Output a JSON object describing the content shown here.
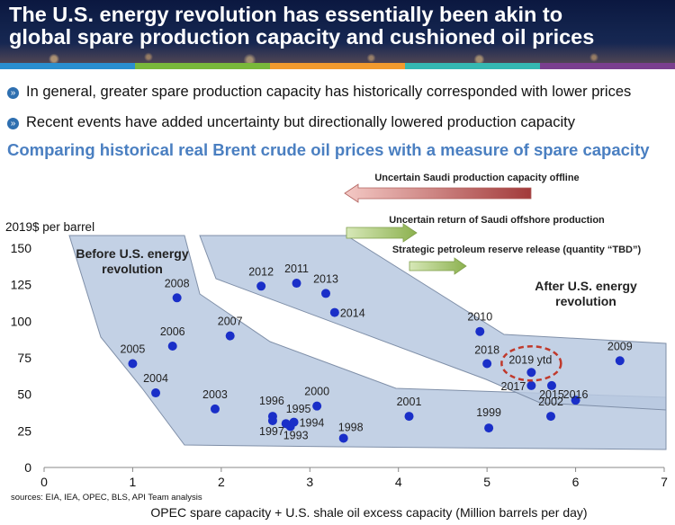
{
  "header": {
    "title_line1": "The U.S. energy revolution has essentially been akin to",
    "title_line2": "global spare production capacity and cushioned oil prices",
    "stripe_colors": [
      "#2a8fcf",
      "#79b83a",
      "#f29a2e",
      "#35b8b2",
      "#7a3f8e"
    ]
  },
  "bullets": [
    "In general, greater spare production capacity has historically corresponded with lower prices",
    "Recent events have added uncertainty but directionally lowered production capacity"
  ],
  "subtitle": "Comparing historical real Brent crude oil prices with a measure of spare capacity",
  "chart_data": {
    "type": "scatter",
    "ylabel": "2019$ per barrel",
    "xlabel": "OPEC spare capacity + U.S. shale oil excess capacity (Million barrels per day)",
    "xlim": [
      0,
      7
    ],
    "ylim": [
      0,
      150
    ],
    "xticks": [
      0,
      1,
      2,
      3,
      4,
      5,
      6,
      7
    ],
    "yticks": [
      0,
      25,
      50,
      75,
      100,
      125,
      150
    ],
    "grid": false,
    "source": "sources:  EIA, IEA, OPEC, BLS, API Team analysis",
    "points": [
      {
        "label": "1993",
        "x": 2.78,
        "y": 28
      },
      {
        "label": "1994",
        "x": 2.82,
        "y": 31
      },
      {
        "label": "1995",
        "x": 2.73,
        "y": 30
      },
      {
        "label": "1996",
        "x": 2.58,
        "y": 35
      },
      {
        "label": "1997",
        "x": 2.58,
        "y": 32
      },
      {
        "label": "1998",
        "x": 3.38,
        "y": 20
      },
      {
        "label": "1999",
        "x": 5.02,
        "y": 27
      },
      {
        "label": "2000",
        "x": 3.08,
        "y": 42
      },
      {
        "label": "2001",
        "x": 4.12,
        "y": 35
      },
      {
        "label": "2002",
        "x": 5.72,
        "y": 35
      },
      {
        "label": "2003",
        "x": 1.93,
        "y": 40
      },
      {
        "label": "2004",
        "x": 1.26,
        "y": 51
      },
      {
        "label": "2005",
        "x": 1.0,
        "y": 71
      },
      {
        "label": "2006",
        "x": 1.45,
        "y": 83
      },
      {
        "label": "2007",
        "x": 2.1,
        "y": 90
      },
      {
        "label": "2008",
        "x": 1.5,
        "y": 116
      },
      {
        "label": "2009",
        "x": 6.5,
        "y": 73
      },
      {
        "label": "2010",
        "x": 4.92,
        "y": 93
      },
      {
        "label": "2011",
        "x": 2.85,
        "y": 126
      },
      {
        "label": "2012",
        "x": 2.45,
        "y": 124
      },
      {
        "label": "2013",
        "x": 3.18,
        "y": 119
      },
      {
        "label": "2014",
        "x": 3.28,
        "y": 106
      },
      {
        "label": "2015",
        "x": 5.73,
        "y": 56
      },
      {
        "label": "2016",
        "x": 6.0,
        "y": 46
      },
      {
        "label": "2017",
        "x": 5.5,
        "y": 56
      },
      {
        "label": "2018",
        "x": 5.0,
        "y": 71
      },
      {
        "label": "2019 ytd",
        "x": 5.5,
        "y": 65
      }
    ],
    "regions": [
      {
        "name": "Before U.S. energy revolution",
        "color": "#b9c9e0"
      },
      {
        "name": "After U.S. energy revolution",
        "color": "#b9c9e0"
      }
    ],
    "annotations": [
      {
        "text": "Uncertain Saudi production capacity offline",
        "kind": "arrow-left",
        "color": "#c0504d"
      },
      {
        "text": "Uncertain return of Saudi offshore production",
        "kind": "arrow-right",
        "color": "#9bbb59"
      },
      {
        "text": "Strategic petroleum reserve release (quantity “TBD”)",
        "kind": "arrow-right",
        "color": "#9bbb59"
      }
    ],
    "highlight": {
      "label": "2019 ytd",
      "color": "#c0392b",
      "style": "dashed-ellipse"
    },
    "point_color": "#1a2fc8"
  }
}
